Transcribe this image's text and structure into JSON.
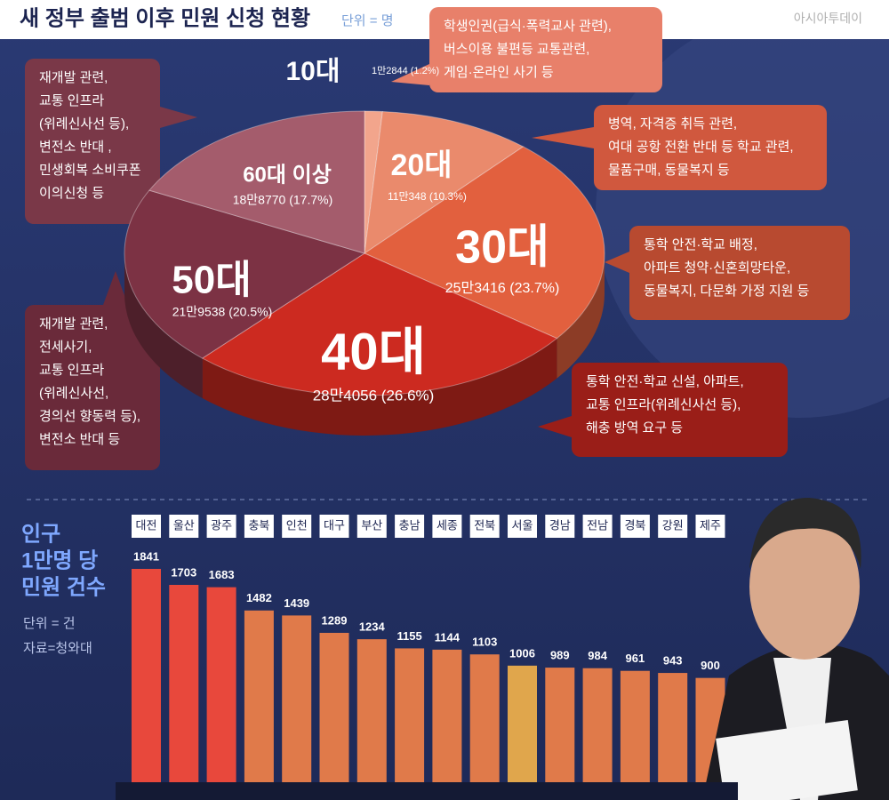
{
  "header": {
    "title": "새 정부 출범 이후 민원 신청 현황",
    "unit": "단위 = 명",
    "logo": "아시아투데이"
  },
  "chart_data": [
    {
      "type": "pie",
      "categories": [
        "10대",
        "20대",
        "30대",
        "40대",
        "50대",
        "60대 이상"
      ],
      "values": [
        1.2,
        10.3,
        23.7,
        26.6,
        20.5,
        17.7
      ],
      "value_labels": [
        "1만2844 (1.2%)",
        "11만348 (10.3%)",
        "25만3416 (23.7%)",
        "28만4056 (26.6%)",
        "21만9538 (20.5%)",
        "18만8770 (17.7%)"
      ],
      "colors": [
        "#f2a58c",
        "#ea8a6c",
        "#e2603e",
        "#cc2a20",
        "#7c3244",
        "#a45c6c"
      ],
      "notes": [
        [
          "학생인권(급식·폭력교사 관련),",
          "버스이용 불편등 교통관련,",
          "게임·온라인 사기 등"
        ],
        [
          "병역, 자격증 취득 관련,",
          "여대 공항 전환 반대 등 학교 관련,",
          "물품구매, 동물복지 등"
        ],
        [
          "통학 안전·학교 배정,",
          "아파트 청약·신혼희망타운,",
          "동물복지, 다문화 가정 지원 등"
        ],
        [
          "통학 안전·학교 신설, 아파트,",
          "교통 인프라(위례신사선 등),",
          "해충 방역 요구 등"
        ],
        [
          "재개발 관련,",
          "전세사기,",
          "교통 인프라",
          "(위례신사선,",
          "경의선 향동력 등),",
          "변전소 반대 등"
        ],
        [
          "재개발 관련,",
          "교통 인프라",
          "(위례신사선 등),",
          "변전소 반대 ,",
          "민생회복 소비쿠폰",
          "이의신청 등"
        ]
      ]
    },
    {
      "type": "bar",
      "title": [
        "인구",
        "1만명 당",
        "민원 건수"
      ],
      "subtitle": "단위 = 건",
      "source": "자료=청와대",
      "categories": [
        "대전",
        "울산",
        "광주",
        "충북",
        "인천",
        "대구",
        "부산",
        "충남",
        "세종",
        "전북",
        "서울",
        "경남",
        "전남",
        "경북",
        "강원",
        "제주"
      ],
      "values": [
        1841,
        1703,
        1683,
        1482,
        1439,
        1289,
        1234,
        1155,
        1144,
        1103,
        1006,
        989,
        984,
        961,
        943,
        900
      ],
      "colors": [
        "#e8483c",
        "#e8483c",
        "#e8483c",
        "#e07a4a",
        "#e07a4a",
        "#e07a4a",
        "#e07a4a",
        "#e07a4a",
        "#e07a4a",
        "#e07a4a",
        "#e0a64c",
        "#e07a4a",
        "#e07a4a",
        "#e07a4a",
        "#e07a4a",
        "#e07a4a"
      ]
    }
  ]
}
